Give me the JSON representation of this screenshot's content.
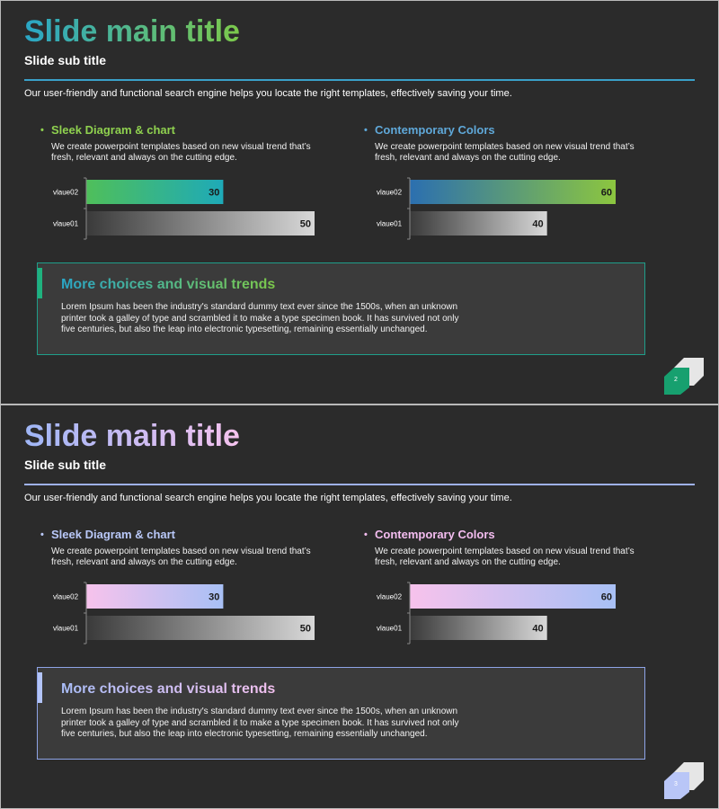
{
  "slides": [
    {
      "title": "Slide main title",
      "subtitle": "Slide sub title",
      "intro": "Our user-friendly and functional search engine helps you locate the right templates, effectively saving your time.",
      "columns": [
        {
          "heading": "Sleek Diagram & chart",
          "description": "We create powerpoint templates based on new visual trend that’s fresh, relevant  and always on the cutting edge."
        },
        {
          "heading": "Contemporary  Colors",
          "description": "We create powerpoint templates based on new visual trend that’s fresh, relevant  and always on the cutting edge."
        }
      ],
      "box": {
        "title": "More choices and visual trends",
        "text": "Lorem Ipsum  has been the industry's  standard dummy text ever since the 1500s, when  an unknown printer took a galley of type and scrambled it to make a type specimen book. It  has survived  not only five centuries,  but also the leap into electronic typesetting,  remaining essentially unchanged."
      },
      "page_number": "2",
      "colors": {
        "title_gradient": [
          "#2aa6c6",
          "#7cc94b"
        ],
        "left_heading": "#8fd14f",
        "right_heading": "#5fa8d9",
        "bullet_left": "#8fd14f",
        "bullet_right": "#5fa8d9",
        "rule": "#3aa1c9",
        "box_border": "#1f9e8a",
        "box_accent": "#1fb27e",
        "box_title_gradient": [
          "#2aa6c6",
          "#7cc94b"
        ],
        "page_icon_front": "#17a06f",
        "page_icon_back": "#e6e6e6"
      }
    },
    {
      "title": "Slide main title",
      "subtitle": "Slide sub title",
      "intro": "Our user-friendly and functional search engine helps you locate the right templates, effectively saving your time.",
      "columns": [
        {
          "heading": "Sleek Diagram & chart",
          "description": "We create powerpoint templates based on new visual trend that’s fresh, relevant  and always on the cutting edge."
        },
        {
          "heading": "Contemporary  Colors",
          "description": "We create powerpoint templates based on new visual trend that’s fresh, relevant  and always on the cutting edge."
        }
      ],
      "box": {
        "title": "More choices and visual trends",
        "text": "Lorem Ipsum  has been the industry's  standard dummy text ever since the 1500s, when  an unknown printer took a galley of type and scrambled it to make a type specimen book. It  has survived  not only five centuries,  but also the leap into electronic typesetting,  remaining essentially unchanged."
      },
      "page_number": "3",
      "colors": {
        "title_gradient": [
          "#9fb6f6",
          "#f5c2ee"
        ],
        "left_heading": "#b9c8f8",
        "right_heading": "#f4bdf0",
        "bullet_left": "#b9c8f8",
        "bullet_right": "#f4bdf0",
        "rule": "#9fb1ec",
        "box_border": "#8ea4e6",
        "box_accent": "#b3c4f8",
        "box_title_gradient": [
          "#a9bdf7",
          "#f3c0ef"
        ],
        "page_icon_front": "#b9c6f7",
        "page_icon_back": "#e6e6e6"
      }
    }
  ],
  "chart_data": [
    {
      "type": "bar",
      "orientation": "horizontal",
      "categories": [
        "vlaue02",
        "vlaue01"
      ],
      "values": [
        30,
        50
      ],
      "data_labels": [
        "30",
        "50"
      ],
      "xlim": [
        0,
        50
      ],
      "bar_gradients": [
        [
          "#4fbf5a",
          "#1eaab8"
        ],
        [
          "#3a3a3a",
          "#d8d8d8"
        ]
      ]
    },
    {
      "type": "bar",
      "orientation": "horizontal",
      "categories": [
        "vlaue02",
        "vlaue01"
      ],
      "values": [
        60,
        40
      ],
      "data_labels": [
        "60",
        "40"
      ],
      "xlim": [
        0,
        60
      ],
      "bar_gradients": [
        [
          "#2b6fb0",
          "#8cc63f"
        ],
        [
          "#3a3a3a",
          "#d8d8d8"
        ]
      ]
    },
    {
      "type": "bar",
      "orientation": "horizontal",
      "categories": [
        "vlaue02",
        "vlaue01"
      ],
      "values": [
        30,
        50
      ],
      "data_labels": [
        "30",
        "50"
      ],
      "xlim": [
        0,
        50
      ],
      "bar_gradients": [
        [
          "#f7c2ec",
          "#a8c0f5"
        ],
        [
          "#3a3a3a",
          "#d8d8d8"
        ]
      ]
    },
    {
      "type": "bar",
      "orientation": "horizontal",
      "categories": [
        "vlaue02",
        "vlaue01"
      ],
      "values": [
        60,
        40
      ],
      "data_labels": [
        "60",
        "40"
      ],
      "xlim": [
        0,
        60
      ],
      "bar_gradients": [
        [
          "#f7c2ec",
          "#a8c0f5"
        ],
        [
          "#3a3a3a",
          "#d8d8d8"
        ]
      ]
    }
  ]
}
